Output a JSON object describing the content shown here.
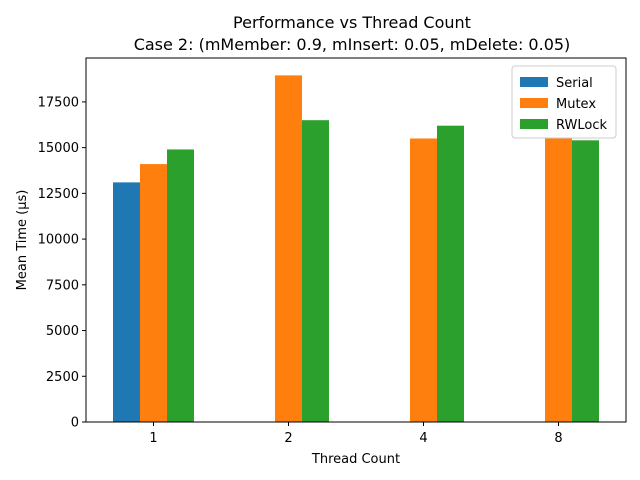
{
  "chart_data": {
    "type": "bar",
    "title": "Performance vs Thread Count",
    "subtitle": "Case 2: (mMember: 0.9, mInsert: 0.05, mDelete: 0.05)",
    "xlabel": "Thread Count",
    "ylabel": "Mean Time (µs)",
    "categories": [
      "1",
      "2",
      "4",
      "8"
    ],
    "series": [
      {
        "name": "Serial",
        "color": "#1f77b4",
        "values": [
          13100,
          null,
          null,
          null
        ]
      },
      {
        "name": "Mutex",
        "color": "#ff7f0e",
        "values": [
          14100,
          18950,
          15500,
          15500
        ]
      },
      {
        "name": "RWLock",
        "color": "#2ca02c",
        "values": [
          14900,
          16500,
          16200,
          15400
        ]
      }
    ],
    "ylim": [
      0,
      19900
    ],
    "yticks": [
      0,
      2500,
      5000,
      7500,
      10000,
      12500,
      15000,
      17500
    ],
    "ytick_labels": [
      "0",
      "2500",
      "5000",
      "7500",
      "10000",
      "12500",
      "15000",
      "17500"
    ],
    "grid": false,
    "legend_position": "top-right"
  }
}
